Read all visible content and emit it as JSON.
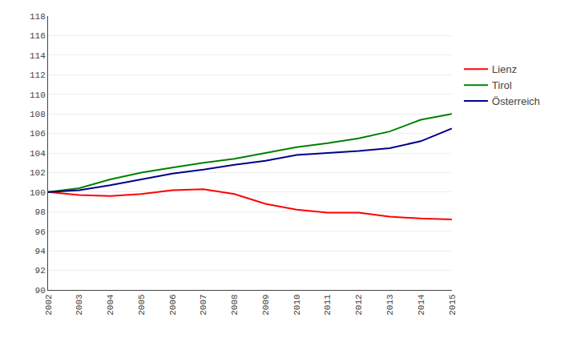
{
  "chart_data": {
    "type": "line",
    "x": [
      2002,
      2003,
      2004,
      2005,
      2006,
      2007,
      2008,
      2009,
      2010,
      2011,
      2012,
      2013,
      2014,
      2015
    ],
    "series": [
      {
        "name": "Lienz",
        "color": "#ff0000",
        "values": [
          100.0,
          99.7,
          99.6,
          99.8,
          100.2,
          100.3,
          99.8,
          98.8,
          98.2,
          97.9,
          97.9,
          97.5,
          97.3,
          97.2
        ]
      },
      {
        "name": "Tirol",
        "color": "#008000",
        "values": [
          100.0,
          100.4,
          101.3,
          102.0,
          102.5,
          103.0,
          103.4,
          104.0,
          104.6,
          105.0,
          105.5,
          106.2,
          107.4,
          108.0
        ]
      },
      {
        "name": "Österreich",
        "color": "#00008b",
        "values": [
          100.0,
          100.2,
          100.7,
          101.3,
          101.9,
          102.3,
          102.8,
          103.2,
          103.8,
          104.0,
          104.2,
          104.5,
          105.2,
          106.5
        ]
      }
    ],
    "xlim": [
      2002,
      2015
    ],
    "xticks": [
      2002,
      2003,
      2004,
      2005,
      2006,
      2007,
      2008,
      2009,
      2010,
      2011,
      2012,
      2013,
      2014,
      2015
    ],
    "ylim": [
      90,
      118
    ],
    "yticks": [
      90,
      92,
      94,
      96,
      98,
      100,
      102,
      104,
      106,
      108,
      110,
      112,
      114,
      116,
      118
    ],
    "grid": "y",
    "legend": "right"
  }
}
